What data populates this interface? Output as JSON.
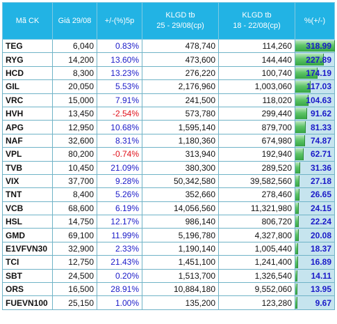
{
  "headers": {
    "code": "Mã CK",
    "price": "Giá 29/08",
    "change": "+/-(%)5p",
    "vol1_line1": "KLGD tb",
    "vol1_line2": "25 - 29/08(cp)",
    "vol2_line1": "KLGD tb",
    "vol2_line2": "18 - 22/08(cp)",
    "ratio": "%(+/-)"
  },
  "colors": {
    "header_bg": "#22b3e4",
    "positive": "#1a1ac8",
    "negative": "#e0101a",
    "bar_fill": "#36a544",
    "bar_track": "#c6e4ee"
  },
  "rows": [
    {
      "code": "TEG",
      "price": "6,040",
      "change": "0.83%",
      "vol1": "478,740",
      "vol2": "114,260",
      "ratio": "318.99",
      "ratio_value": 318.99,
      "sign": "pos"
    },
    {
      "code": "RYG",
      "price": "14,200",
      "change": "13.60%",
      "vol1": "473,600",
      "vol2": "144,440",
      "ratio": "227.89",
      "ratio_value": 227.89,
      "sign": "pos"
    },
    {
      "code": "HCD",
      "price": "8,300",
      "change": "13.23%",
      "vol1": "276,220",
      "vol2": "100,740",
      "ratio": "174.19",
      "ratio_value": 174.19,
      "sign": "pos"
    },
    {
      "code": "GIL",
      "price": "20,050",
      "change": "5.53%",
      "vol1": "2,176,960",
      "vol2": "1,003,060",
      "ratio": "117.03",
      "ratio_value": 117.03,
      "sign": "pos"
    },
    {
      "code": "VRC",
      "price": "15,000",
      "change": "7.91%",
      "vol1": "241,500",
      "vol2": "118,020",
      "ratio": "104.63",
      "ratio_value": 104.63,
      "sign": "pos"
    },
    {
      "code": "HVH",
      "price": "13,450",
      "change": "-2.54%",
      "vol1": "573,780",
      "vol2": "299,440",
      "ratio": "91.62",
      "ratio_value": 91.62,
      "sign": "neg"
    },
    {
      "code": "APG",
      "price": "12,950",
      "change": "10.68%",
      "vol1": "1,595,140",
      "vol2": "879,700",
      "ratio": "81.33",
      "ratio_value": 81.33,
      "sign": "pos"
    },
    {
      "code": "NAF",
      "price": "32,600",
      "change": "8.31%",
      "vol1": "1,180,360",
      "vol2": "674,980",
      "ratio": "74.87",
      "ratio_value": 74.87,
      "sign": "pos"
    },
    {
      "code": "VPL",
      "price": "80,200",
      "change": "-0.74%",
      "vol1": "313,940",
      "vol2": "192,940",
      "ratio": "62.71",
      "ratio_value": 62.71,
      "sign": "neg"
    },
    {
      "code": "TVB",
      "price": "10,450",
      "change": "21.09%",
      "vol1": "380,300",
      "vol2": "289,520",
      "ratio": "31.36",
      "ratio_value": 31.36,
      "sign": "pos"
    },
    {
      "code": "VIX",
      "price": "37,700",
      "change": "9.28%",
      "vol1": "50,342,580",
      "vol2": "39,582,560",
      "ratio": "27.18",
      "ratio_value": 27.18,
      "sign": "pos"
    },
    {
      "code": "TNT",
      "price": "8,400",
      "change": "5.26%",
      "vol1": "352,660",
      "vol2": "278,460",
      "ratio": "26.65",
      "ratio_value": 26.65,
      "sign": "pos"
    },
    {
      "code": "VCB",
      "price": "68,600",
      "change": "6.19%",
      "vol1": "14,056,560",
      "vol2": "11,321,980",
      "ratio": "24.15",
      "ratio_value": 24.15,
      "sign": "pos"
    },
    {
      "code": "HSL",
      "price": "14,750",
      "change": "12.17%",
      "vol1": "986,140",
      "vol2": "806,720",
      "ratio": "22.24",
      "ratio_value": 22.24,
      "sign": "pos"
    },
    {
      "code": "GMD",
      "price": "69,100",
      "change": "11.99%",
      "vol1": "5,196,780",
      "vol2": "4,327,800",
      "ratio": "20.08",
      "ratio_value": 20.08,
      "sign": "pos"
    },
    {
      "code": "E1VFVN30",
      "price": "32,900",
      "change": "2.33%",
      "vol1": "1,190,140",
      "vol2": "1,005,440",
      "ratio": "18.37",
      "ratio_value": 18.37,
      "sign": "pos"
    },
    {
      "code": "TCI",
      "price": "12,750",
      "change": "21.43%",
      "vol1": "1,451,100",
      "vol2": "1,241,400",
      "ratio": "16.89",
      "ratio_value": 16.89,
      "sign": "pos"
    },
    {
      "code": "SBT",
      "price": "24,500",
      "change": "0.20%",
      "vol1": "1,513,700",
      "vol2": "1,326,540",
      "ratio": "14.11",
      "ratio_value": 14.11,
      "sign": "pos"
    },
    {
      "code": "ORS",
      "price": "16,500",
      "change": "28.91%",
      "vol1": "10,884,180",
      "vol2": "9,552,060",
      "ratio": "13.95",
      "ratio_value": 13.95,
      "sign": "pos"
    },
    {
      "code": "FUEVN100",
      "price": "25,150",
      "change": "1.00%",
      "vol1": "135,200",
      "vol2": "123,280",
      "ratio": "9.67",
      "ratio_value": 9.67,
      "sign": "pos"
    }
  ]
}
